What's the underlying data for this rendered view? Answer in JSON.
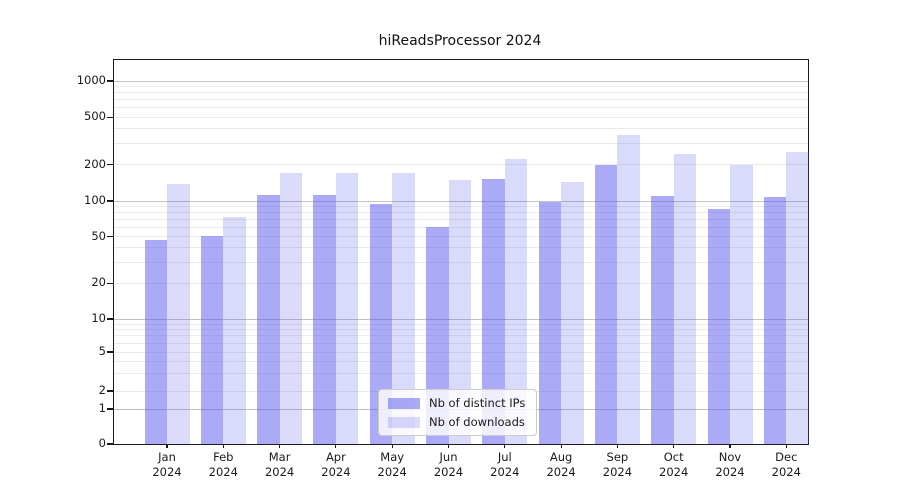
{
  "chart_data": {
    "type": "bar",
    "title": "hiReadsProcessor 2024",
    "categories": [
      "Jan 2024",
      "Feb 2024",
      "Mar 2024",
      "Apr 2024",
      "May 2024",
      "Jun 2024",
      "Jul 2024",
      "Aug 2024",
      "Sep 2024",
      "Oct 2024",
      "Nov 2024",
      "Dec 2024"
    ],
    "series": [
      {
        "name": "Nb of distinct IPs",
        "color": "rgba(85,85,238,0.5)",
        "values": [
          47,
          51,
          112,
          113,
          94,
          60,
          153,
          99,
          198,
          111,
          85,
          107
        ]
      },
      {
        "name": "Nb of downloads",
        "color": "rgba(85,85,238,0.22)",
        "values": [
          139,
          73,
          170,
          172,
          171,
          150,
          224,
          145,
          356,
          247,
          200,
          257
        ]
      }
    ],
    "xlabel": "",
    "ylabel": "",
    "yscale": "symlog",
    "yticks": [
      1000,
      500,
      200,
      100,
      50,
      20,
      10,
      5,
      2,
      1,
      0
    ],
    "ylim": [
      0,
      1500
    ],
    "grid": "horizontal",
    "legend_position": "lower center"
  },
  "colors": {
    "major_gridline": "#c2c2c2",
    "minor_gridline": "#ebebeb",
    "spine": "#1a1a1a"
  }
}
